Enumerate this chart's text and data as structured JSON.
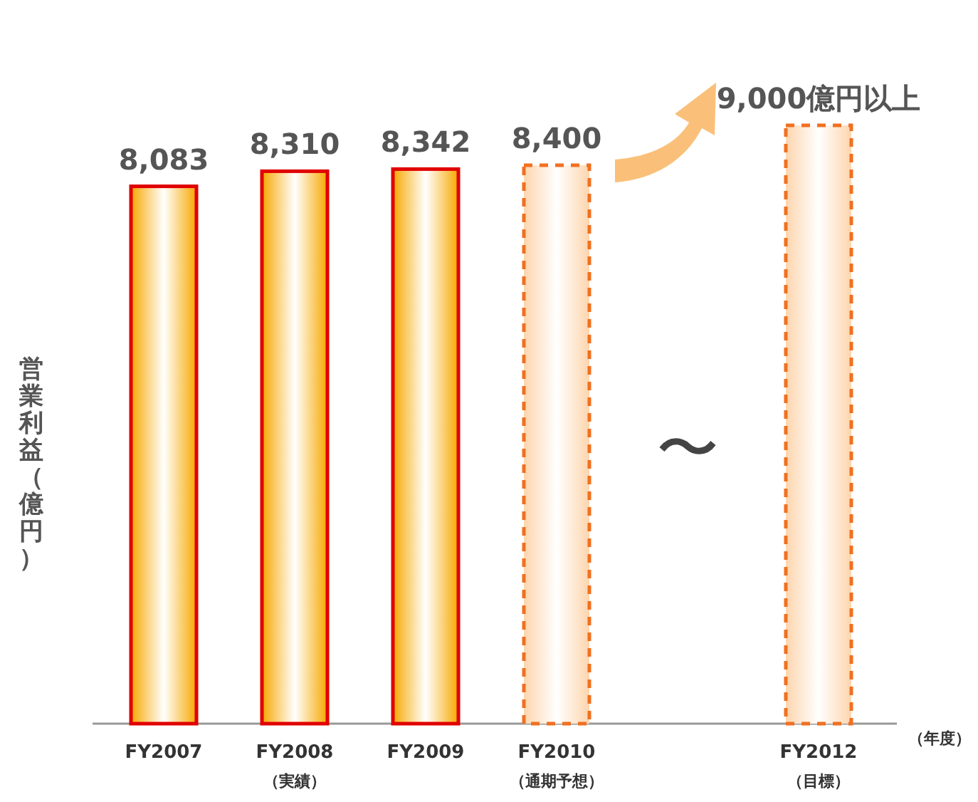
{
  "chart_data": {
    "type": "bar",
    "ylabel": "営業利益（億円）",
    "xlabel": "（年度）",
    "categories": [
      "FY2007",
      "FY2008\n（実績）",
      "FY2009",
      "FY2010\n（通期予想）",
      null,
      "FY2012\n（目標）"
    ],
    "series": [
      {
        "color": "#e00000",
        "line_style": "solid",
        "values": [
          8083,
          8310,
          8342,
          null,
          null,
          null
        ],
        "value_labels": [
          "8,083",
          "8,310",
          "8,342",
          null,
          null,
          null
        ]
      },
      {
        "color": "#f07020",
        "line_style": "dashed",
        "values": [
          null,
          null,
          null,
          8400,
          null,
          9000
        ],
        "value_labels": [
          null,
          null,
          null,
          "8,400",
          null,
          "9,000億円以上"
        ]
      }
    ],
    "annotations": [
      "〜"
    ]
  }
}
